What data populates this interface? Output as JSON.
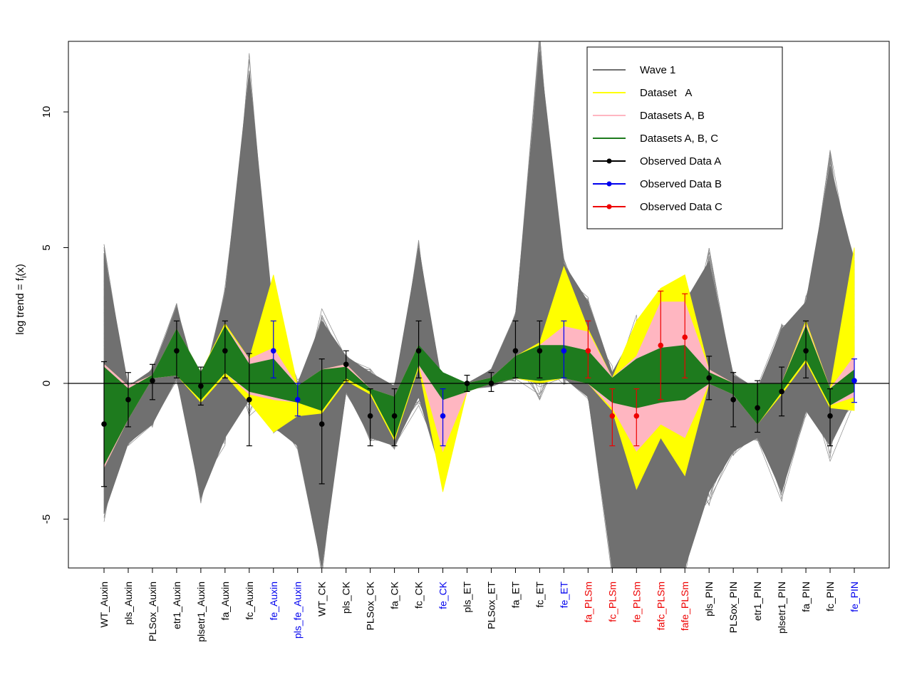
{
  "chart_data": {
    "type": "line",
    "ylabel_main": "log trend = f",
    "ylabel_sub": "i",
    "ylabel_tail": "(x)",
    "ylim": [
      -6.8,
      12.6
    ],
    "yticks": [
      10,
      5,
      0,
      -5
    ],
    "grid": false,
    "legend_position": "top-right",
    "categories": [
      "WT_Auxin",
      "pls_Auxin",
      "PLSox_Auxin",
      "etr1_Auxin",
      "plsetr1_Auxin",
      "fa_Auxin",
      "fc_Auxin",
      "fe_Auxin",
      "pls_fe_Auxin",
      "WT_CK",
      "pls_CK",
      "PLSox_CK",
      "fa_CK",
      "fc_CK",
      "fe_CK",
      "pls_ET",
      "PLSox_ET",
      "fa_ET",
      "fc_ET",
      "fe_ET",
      "fa_PLSm",
      "fc_PLSm",
      "fe_PLSm",
      "fafc_PLSm",
      "fafe_PLSm",
      "pls_PIN",
      "PLSox_PIN",
      "etr1_PIN",
      "plsetr1_PIN",
      "fa_PIN",
      "fc_PIN",
      "fe_PIN"
    ],
    "category_groups": [
      "A",
      "A",
      "A",
      "A",
      "A",
      "A",
      "A",
      "B",
      "B",
      "A",
      "A",
      "A",
      "A",
      "A",
      "B",
      "A",
      "A",
      "A",
      "A",
      "B",
      "C",
      "C",
      "C",
      "C",
      "C",
      "A",
      "A",
      "A",
      "A",
      "A",
      "A",
      "B"
    ],
    "group_colors": {
      "A": "#000000",
      "B": "#0000ee",
      "C": "#ee0000"
    },
    "legend": [
      {
        "label": "Wave 1",
        "color": "#707070",
        "marker": false
      },
      {
        "label": "Dataset   A",
        "color": "#ffff00",
        "marker": false
      },
      {
        "label": "Datasets A, B",
        "color": "#ffb6c1",
        "marker": false
      },
      {
        "label": "Datasets A, B, C",
        "color": "#1e7b1e",
        "marker": false
      },
      {
        "label": "Observed Data A",
        "color": "#000000",
        "marker": true
      },
      {
        "label": "Observed Data B",
        "color": "#0000ee",
        "marker": true
      },
      {
        "label": "Observed Data C",
        "color": "#ee0000",
        "marker": true
      }
    ],
    "observed": [
      {
        "value": -1.5,
        "lo": -3.8,
        "hi": 0.8
      },
      {
        "value": -0.6,
        "lo": -1.6,
        "hi": 0.4
      },
      {
        "value": 0.1,
        "lo": -0.6,
        "hi": 0.7
      },
      {
        "value": 1.2,
        "lo": 0.2,
        "hi": 2.3
      },
      {
        "value": -0.1,
        "lo": -0.8,
        "hi": 0.6
      },
      {
        "value": 1.2,
        "lo": 0.2,
        "hi": 2.3
      },
      {
        "value": -0.6,
        "lo": -2.3,
        "hi": 1.1
      },
      {
        "value": 1.2,
        "lo": 0.2,
        "hi": 2.3
      },
      {
        "value": -0.6,
        "lo": -1.2,
        "hi": 0.0
      },
      {
        "value": -1.5,
        "lo": -3.7,
        "hi": 0.9
      },
      {
        "value": 0.7,
        "lo": 0.1,
        "hi": 1.2
      },
      {
        "value": -1.2,
        "lo": -2.3,
        "hi": -0.2
      },
      {
        "value": -1.2,
        "lo": -2.3,
        "hi": -0.2
      },
      {
        "value": 1.2,
        "lo": 0.2,
        "hi": 2.3
      },
      {
        "value": -1.2,
        "lo": -2.3,
        "hi": -0.2
      },
      {
        "value": 0.0,
        "lo": -0.3,
        "hi": 0.3
      },
      {
        "value": 0.0,
        "lo": -0.3,
        "hi": 0.4
      },
      {
        "value": 1.2,
        "lo": 0.2,
        "hi": 2.3
      },
      {
        "value": 1.2,
        "lo": 0.2,
        "hi": 2.3
      },
      {
        "value": 1.2,
        "lo": 0.2,
        "hi": 2.3
      },
      {
        "value": 1.2,
        "lo": 0.2,
        "hi": 2.3
      },
      {
        "value": -1.2,
        "lo": -2.3,
        "hi": -0.2
      },
      {
        "value": -1.2,
        "lo": -2.3,
        "hi": -0.2
      },
      {
        "value": 1.4,
        "lo": -0.6,
        "hi": 3.4
      },
      {
        "value": 1.7,
        "lo": 0.2,
        "hi": 3.3
      },
      {
        "value": 0.2,
        "lo": -0.6,
        "hi": 1.0
      },
      {
        "value": -0.6,
        "lo": -1.6,
        "hi": 0.4
      },
      {
        "value": -0.9,
        "lo": -1.8,
        "hi": 0.1
      },
      {
        "value": -0.3,
        "lo": -1.2,
        "hi": 0.6
      },
      {
        "value": 1.2,
        "lo": 0.2,
        "hi": 2.3
      },
      {
        "value": -1.2,
        "lo": -2.3,
        "hi": -0.2
      },
      {
        "value": 0.1,
        "lo": -0.7,
        "hi": 0.9
      }
    ],
    "bands": {
      "wave1": {
        "lo": [
          -4.8,
          -2.2,
          -1.5,
          0.2,
          -4.2,
          -2.0,
          -0.6,
          -1.6,
          -2.3,
          -6.8,
          -0.3,
          -2.0,
          -2.3,
          -0.5,
          -3.5,
          -0.2,
          -0.1,
          0.2,
          0.0,
          0.2,
          -0.5,
          -6.8,
          -6.8,
          -6.8,
          -6.8,
          -4.0,
          -2.5,
          -2.0,
          -4.0,
          -1.0,
          -2.3,
          -0.5
        ],
        "hi": [
          4.8,
          -0.1,
          0.5,
          2.8,
          -0.4,
          3.3,
          11.5,
          2.5,
          0.0,
          2.3,
          1.0,
          0.4,
          -0.1,
          5.0,
          -0.2,
          0.0,
          0.5,
          2.5,
          12.2,
          4.4,
          3.0,
          0.4,
          2.0,
          2.5,
          3.0,
          4.5,
          0.3,
          -0.2,
          2.0,
          3.0,
          8.0,
          4.5
        ]
      },
      "datasetA": {
        "lo": [
          -3.1,
          -1.3,
          0.2,
          0.3,
          -0.7,
          0.3,
          -0.7,
          -1.8,
          -1.2,
          -1.1,
          0.1,
          -0.4,
          -2.1,
          0.6,
          -4.0,
          -0.3,
          0.0,
          0.2,
          0.0,
          0.2,
          0.0,
          -1.0,
          -3.9,
          -2.0,
          -3.4,
          0.0,
          -0.4,
          -1.5,
          -0.4,
          0.8,
          -0.9,
          -1.0
        ],
        "hi": [
          0.7,
          -0.1,
          0.3,
          2.0,
          0.4,
          2.2,
          0.9,
          4.0,
          -0.1,
          0.5,
          0.7,
          -0.2,
          -0.5,
          1.4,
          -0.2,
          0.0,
          0.2,
          1.0,
          1.5,
          4.3,
          2.0,
          0.2,
          2.3,
          3.5,
          4.0,
          0.5,
          0.0,
          0.0,
          0.0,
          2.3,
          -0.2,
          5.0
        ]
      },
      "datasetsAB": {
        "lo": [
          -3.1,
          -1.3,
          0.2,
          0.3,
          -0.6,
          0.4,
          -0.4,
          -0.6,
          -0.7,
          -1.0,
          0.2,
          -0.3,
          -2.0,
          0.7,
          -2.5,
          -0.3,
          0.0,
          0.2,
          0.1,
          0.2,
          0.0,
          -0.9,
          -2.5,
          -1.5,
          -2.0,
          0.0,
          -0.4,
          -1.5,
          -0.3,
          0.9,
          -0.8,
          -0.5
        ],
        "hi": [
          0.7,
          -0.1,
          0.3,
          2.0,
          0.4,
          2.1,
          0.9,
          1.3,
          -0.1,
          0.5,
          0.7,
          -0.2,
          -0.5,
          1.4,
          -0.3,
          0.0,
          0.2,
          1.0,
          1.4,
          2.1,
          1.9,
          0.2,
          1.0,
          3.0,
          3.0,
          0.5,
          0.0,
          0.0,
          0.0,
          2.2,
          -0.2,
          1.0
        ]
      },
      "datasetsABC": {
        "lo": [
          -3.0,
          -1.3,
          0.2,
          0.3,
          -0.6,
          0.4,
          -0.3,
          -0.5,
          -0.7,
          -1.0,
          0.2,
          -0.3,
          -2.0,
          0.7,
          -0.6,
          -0.3,
          0.0,
          0.2,
          0.1,
          0.2,
          0.0,
          -0.7,
          -0.9,
          -0.7,
          -0.6,
          0.0,
          -0.4,
          -1.5,
          -0.3,
          0.9,
          -0.8,
          -0.3
        ],
        "hi": [
          0.6,
          -0.2,
          0.3,
          2.0,
          0.4,
          2.1,
          0.7,
          0.9,
          -0.1,
          0.5,
          0.6,
          -0.2,
          -0.5,
          1.4,
          0.4,
          0.0,
          0.2,
          1.0,
          1.4,
          1.4,
          1.2,
          0.2,
          0.9,
          1.3,
          1.4,
          0.4,
          0.0,
          0.0,
          0.0,
          2.1,
          -0.2,
          0.5
        ]
      }
    }
  }
}
